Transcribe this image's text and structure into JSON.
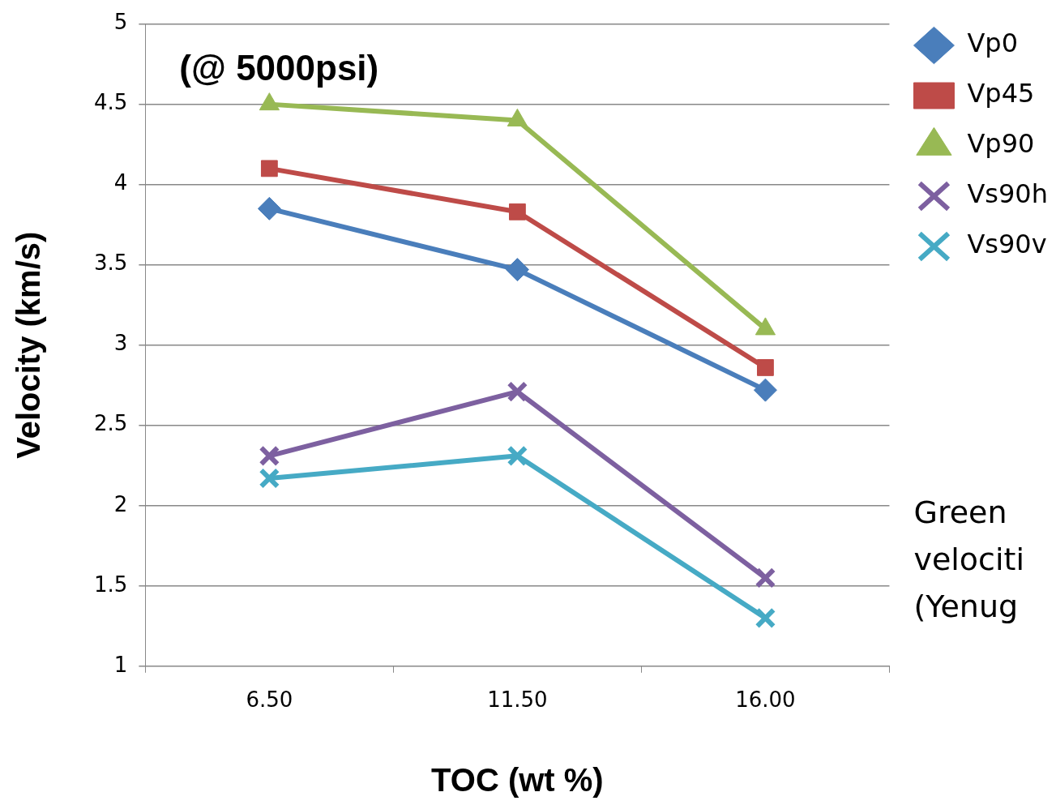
{
  "chart_data": {
    "type": "line",
    "xlabel": "TOC (wt %)",
    "ylabel": "Velocity (km/s)",
    "categories": [
      "6.50",
      "11.50",
      "16.00"
    ],
    "series": [
      {
        "name": "Vp0",
        "color": "#4a7ebb",
        "marker": "diamond",
        "values": [
          3.85,
          3.47,
          2.72
        ]
      },
      {
        "name": "Vp45",
        "color": "#be4b48",
        "marker": "square",
        "values": [
          4.1,
          3.83,
          2.86
        ]
      },
      {
        "name": "Vp90",
        "color": "#98b954",
        "marker": "triangle",
        "values": [
          4.5,
          4.4,
          3.1
        ]
      },
      {
        "name": "Vs90h",
        "color": "#7d60a0",
        "marker": "cross",
        "values": [
          2.31,
          2.71,
          1.55
        ]
      },
      {
        "name": "Vs90v",
        "color": "#46aac5",
        "marker": "cross",
        "values": [
          2.17,
          2.31,
          1.3
        ]
      }
    ],
    "ylim": [
      1,
      5
    ],
    "yticks": [
      1,
      1.5,
      2,
      2.5,
      3,
      3.5,
      4,
      4.5,
      5
    ],
    "grid": "y",
    "legend": "right",
    "line_style": "solid",
    "annotations": [
      "(@ 5000psi)",
      "Green\nvelociti\n(Yenug"
    ]
  }
}
